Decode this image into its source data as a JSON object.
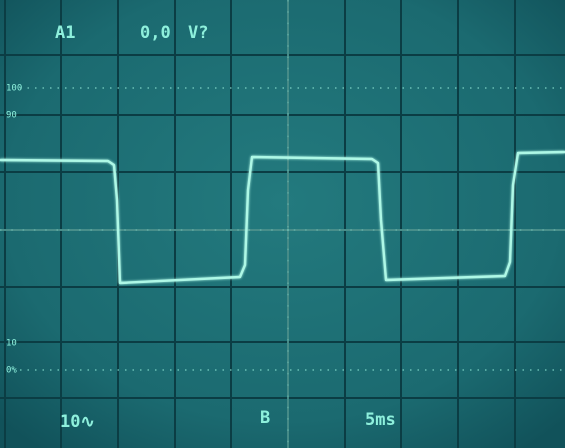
{
  "readout": {
    "channel": "A1",
    "offset": "0,0",
    "unit": "V?",
    "volts_per_div": "10∿",
    "trigger": "B",
    "time_per_div": "5ms"
  },
  "graticule": {
    "top_marker": "100",
    "upper_marker": "90",
    "lower_marker": "10",
    "bottom_marker": "0%"
  }
}
